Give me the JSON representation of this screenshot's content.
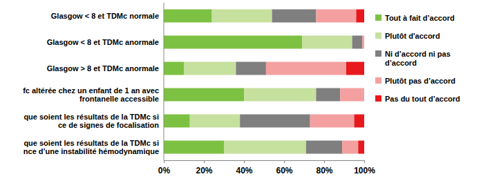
{
  "chart_data": {
    "type": "bar",
    "orientation": "horizontal",
    "stacked": true,
    "legend": "right",
    "grid": false,
    "categories": [
      "Glasgow < 8 et TDMc normale",
      "Glasgow < 8 et TDMc anormale",
      "Glasgow > 8 et TDMc anormale",
      "fc altérée chez un enfant de 1 an avec\nfrontanelle accessible",
      "que soient les résultats de la TDMc si\nce de signes de focalisation",
      "que soient les résultats de la TDMc si\nnce d’une instabilité hémodynamique"
    ],
    "series": [
      {
        "name": "Tout à fait d’accord",
        "color": "#7dc142",
        "values": [
          24,
          69,
          10,
          40,
          13,
          30
        ]
      },
      {
        "name": "Plutôt d'accord",
        "color": "#c6e09e",
        "values": [
          30,
          25,
          26,
          36,
          25,
          41
        ]
      },
      {
        "name": "Ni d’accord ni pas\nd’accord",
        "color": "#7f7f7f",
        "values": [
          22,
          5,
          15,
          12,
          35,
          18
        ]
      },
      {
        "name": "Plutôt pas d’accord",
        "color": "#f4a0a0",
        "values": [
          20,
          1,
          40,
          12,
          22,
          8
        ]
      },
      {
        "name": "Pas du tout d’accord",
        "color": "#e8191c",
        "values": [
          4,
          0,
          9,
          0,
          5,
          3
        ]
      }
    ],
    "xlim": [
      0,
      100
    ],
    "xticks": [
      {
        "value": 0,
        "label": "0%"
      },
      {
        "value": 20,
        "label": "20%"
      },
      {
        "value": 40,
        "label": "40%"
      },
      {
        "value": 60,
        "label": "60%"
      },
      {
        "value": 80,
        "label": "80%"
      },
      {
        "value": 100,
        "label": "100%"
      }
    ]
  }
}
